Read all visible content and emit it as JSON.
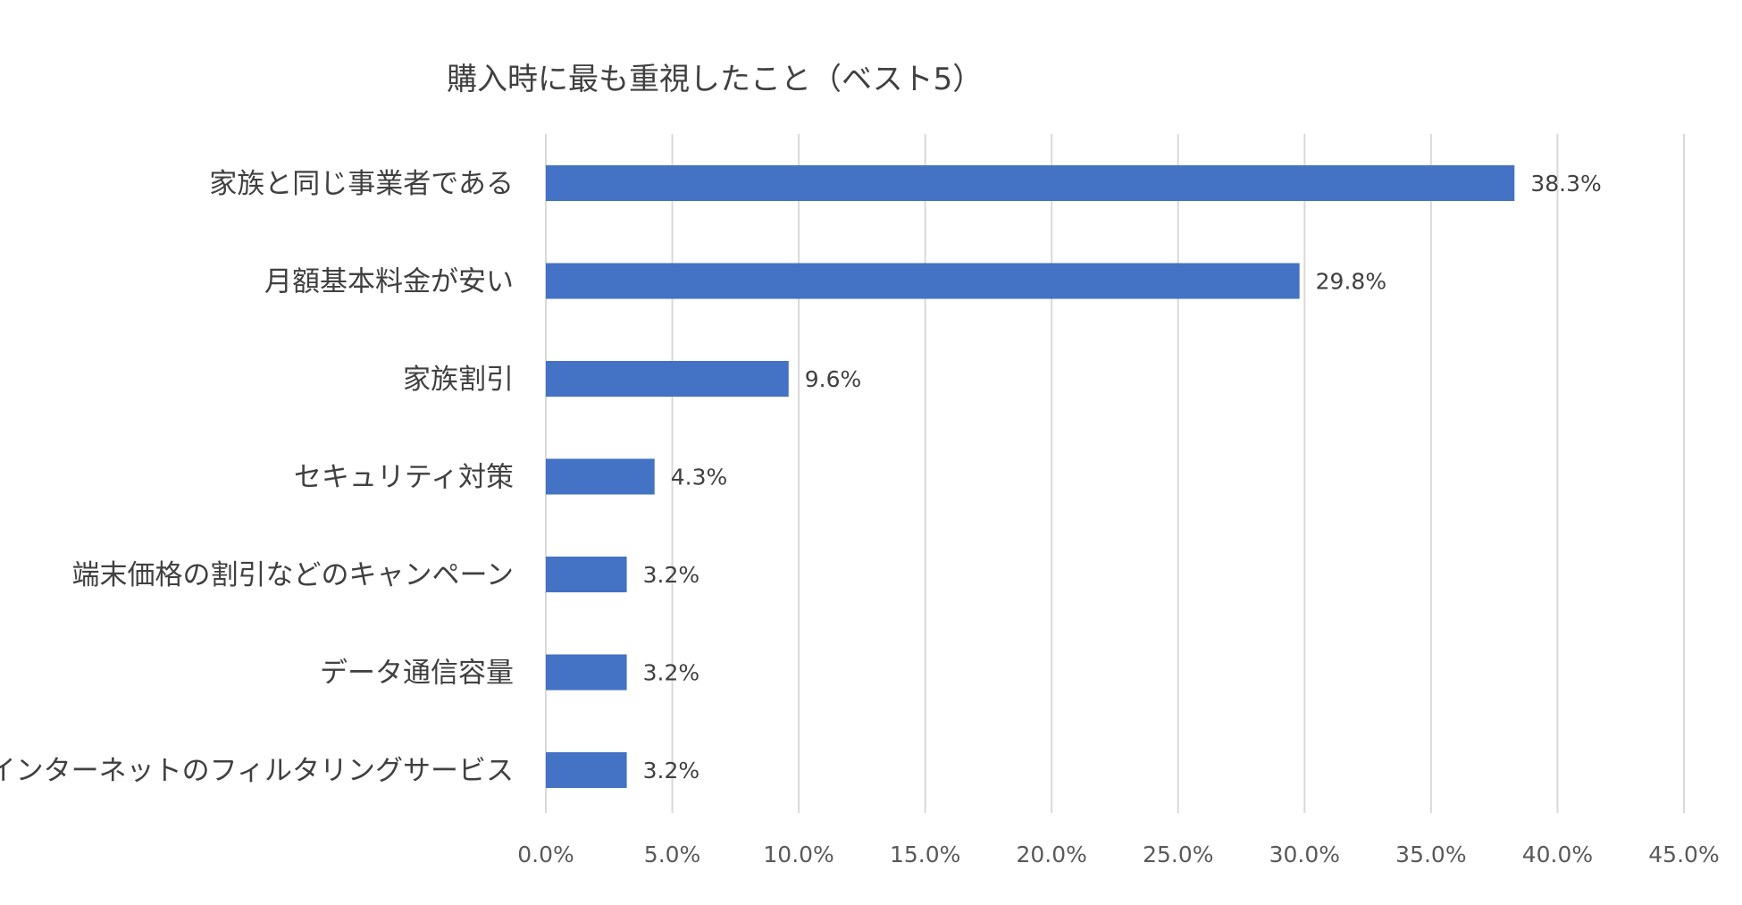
{
  "chart_data": {
    "type": "bar",
    "orientation": "horizontal",
    "title": "購入時に最も重視したこと（ベスト5）",
    "categories": [
      "家族と同じ事業者である",
      "月額基本料金が安い",
      "家族割引",
      "セキュリティ対策",
      "端末価格の割引などのキャンペーン",
      "データ通信容量",
      "インターネットのフィルタリングサービス"
    ],
    "values": [
      38.3,
      29.8,
      9.6,
      4.3,
      3.2,
      3.2,
      3.2
    ],
    "data_labels": [
      "38.3%",
      "29.8%",
      "9.6%",
      "4.3%",
      "3.2%",
      "3.2%",
      "3.2%"
    ],
    "xlim": [
      0,
      45
    ],
    "xticks": [
      0,
      5,
      10,
      15,
      20,
      25,
      30,
      35,
      40,
      45
    ],
    "xtick_labels": [
      "0.0%",
      "5.0%",
      "10.0%",
      "15.0%",
      "20.0%",
      "25.0%",
      "30.0%",
      "35.0%",
      "40.0%",
      "45.0%"
    ],
    "xlabel": "",
    "ylabel": "",
    "grid": "vertical",
    "legend": "none",
    "bar_color": "#4472c4",
    "grid_color": "#d9d9d9",
    "text_color": "#404040"
  }
}
